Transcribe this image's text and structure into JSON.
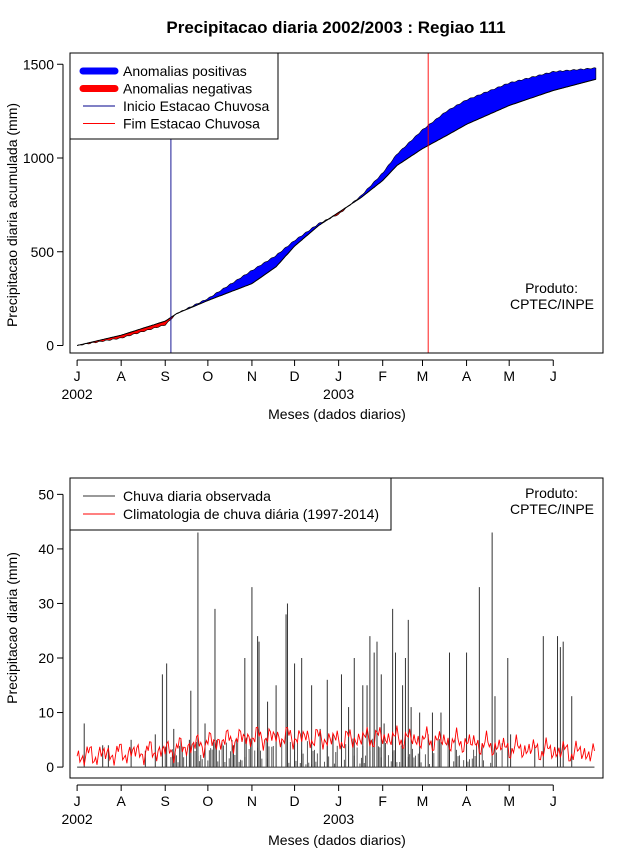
{
  "title": "Precipitacao diaria 2002/2003 : Regiao 111",
  "product_line1": "Produto:",
  "product_line2": "CPTEC/INPE",
  "colors": {
    "positive": "#0000ff",
    "negative": "#ff0000",
    "start_line": "#00008b",
    "end_line": "#ff0000",
    "observed": "#333333",
    "climatology": "#ff0000"
  },
  "chart_data": [
    {
      "type": "area",
      "id": "accumulated",
      "title": "Precipitacao diaria 2002/2003 : Regiao 111",
      "xlabel": "Meses (dados diarios)",
      "ylabel": "Precipitacao diaria acumulada (mm)",
      "x_unit": "days since 2002-07-01",
      "xlim": [
        -5,
        370
      ],
      "ylim": [
        -40,
        1560
      ],
      "yticks": [
        0,
        500,
        1000,
        1500
      ],
      "month_ticks": [
        {
          "day": 0,
          "label": "J"
        },
        {
          "day": 31,
          "label": "A"
        },
        {
          "day": 62,
          "label": "S"
        },
        {
          "day": 92,
          "label": "O"
        },
        {
          "day": 123,
          "label": "N"
        },
        {
          "day": 153,
          "label": "D"
        },
        {
          "day": 184,
          "label": "J"
        },
        {
          "day": 215,
          "label": "F"
        },
        {
          "day": 243,
          "label": "M"
        },
        {
          "day": 274,
          "label": "A"
        },
        {
          "day": 304,
          "label": "M"
        },
        {
          "day": 335,
          "label": "J"
        }
      ],
      "year_labels": [
        {
          "day": 0,
          "label": "2002"
        },
        {
          "day": 184,
          "label": "2003"
        }
      ],
      "observed_cumulative": {
        "days": [
          0,
          31,
          62,
          70,
          92,
          123,
          140,
          153,
          170,
          184,
          200,
          215,
          225,
          243,
          260,
          274,
          304,
          335,
          365
        ],
        "values": [
          0,
          40,
          110,
          170,
          250,
          400,
          480,
          560,
          650,
          700,
          800,
          920,
          1020,
          1150,
          1250,
          1310,
          1400,
          1460,
          1480
        ]
      },
      "climatology_cumulative": {
        "days": [
          0,
          31,
          62,
          70,
          92,
          123,
          140,
          153,
          170,
          184,
          200,
          215,
          225,
          243,
          260,
          274,
          304,
          335,
          365
        ],
        "values": [
          0,
          55,
          130,
          170,
          240,
          330,
          420,
          530,
          640,
          710,
          790,
          880,
          960,
          1050,
          1120,
          1180,
          1280,
          1360,
          1420
        ]
      },
      "start_wet_season_day": 66,
      "end_wet_season_day": 247,
      "legend": [
        {
          "label": "Anomalias positivas",
          "style": "thick",
          "color": "#0000ff"
        },
        {
          "label": "Anomalias negativas",
          "style": "thick",
          "color": "#ff0000"
        },
        {
          "label": "Inicio Estacao Chuvosa",
          "style": "thin",
          "color": "#00008b"
        },
        {
          "label": "Fim Estacao Chuvosa",
          "style": "thin",
          "color": "#ff0000"
        }
      ]
    },
    {
      "type": "bar",
      "id": "daily",
      "xlabel": "Meses (dados diarios)",
      "ylabel": "Precipitacao diaria (mm)",
      "xlim": [
        -5,
        370
      ],
      "ylim": [
        -2,
        53
      ],
      "yticks": [
        0,
        10,
        20,
        30,
        40,
        50
      ],
      "daily_peaks": [
        {
          "day": 5,
          "value": 8
        },
        {
          "day": 18,
          "value": 4
        },
        {
          "day": 22,
          "value": 4
        },
        {
          "day": 38,
          "value": 5
        },
        {
          "day": 48,
          "value": 3
        },
        {
          "day": 55,
          "value": 6
        },
        {
          "day": 60,
          "value": 17
        },
        {
          "day": 63,
          "value": 19
        },
        {
          "day": 68,
          "value": 7
        },
        {
          "day": 79,
          "value": 5
        },
        {
          "day": 80,
          "value": 14
        },
        {
          "day": 85,
          "value": 43
        },
        {
          "day": 90,
          "value": 8
        },
        {
          "day": 97,
          "value": 29
        },
        {
          "day": 110,
          "value": 4
        },
        {
          "day": 118,
          "value": 20
        },
        {
          "day": 123,
          "value": 33
        },
        {
          "day": 127,
          "value": 24
        },
        {
          "day": 128,
          "value": 23
        },
        {
          "day": 134,
          "value": 12
        },
        {
          "day": 140,
          "value": 15
        },
        {
          "day": 147,
          "value": 28
        },
        {
          "day": 148,
          "value": 30
        },
        {
          "day": 153,
          "value": 19
        },
        {
          "day": 158,
          "value": 20
        },
        {
          "day": 165,
          "value": 15
        },
        {
          "day": 171,
          "value": 7
        },
        {
          "day": 176,
          "value": 16
        },
        {
          "day": 180,
          "value": 6
        },
        {
          "day": 186,
          "value": 17
        },
        {
          "day": 191,
          "value": 11
        },
        {
          "day": 195,
          "value": 20
        },
        {
          "day": 201,
          "value": 15
        },
        {
          "day": 204,
          "value": 15
        },
        {
          "day": 206,
          "value": 24
        },
        {
          "day": 209,
          "value": 21
        },
        {
          "day": 211,
          "value": 23
        },
        {
          "day": 214,
          "value": 17
        },
        {
          "day": 216,
          "value": 8
        },
        {
          "day": 222,
          "value": 29
        },
        {
          "day": 224,
          "value": 21
        },
        {
          "day": 229,
          "value": 15
        },
        {
          "day": 231,
          "value": 20
        },
        {
          "day": 233,
          "value": 27
        },
        {
          "day": 235,
          "value": 11
        },
        {
          "day": 241,
          "value": 10
        },
        {
          "day": 247,
          "value": 6
        },
        {
          "day": 250,
          "value": 10
        },
        {
          "day": 256,
          "value": 10
        },
        {
          "day": 262,
          "value": 21
        },
        {
          "day": 274,
          "value": 21
        },
        {
          "day": 283,
          "value": 33
        },
        {
          "day": 292,
          "value": 43
        },
        {
          "day": 294,
          "value": 13
        },
        {
          "day": 303,
          "value": 20
        },
        {
          "day": 305,
          "value": 6
        },
        {
          "day": 322,
          "value": 4
        },
        {
          "day": 328,
          "value": 24
        },
        {
          "day": 338,
          "value": 24
        },
        {
          "day": 340,
          "value": 22
        },
        {
          "day": 342,
          "value": 23
        },
        {
          "day": 348,
          "value": 13
        }
      ],
      "climatology_monthly_mean": [
        {
          "day": 0,
          "value": 2.0
        },
        {
          "day": 31,
          "value": 2.5
        },
        {
          "day": 62,
          "value": 3.0
        },
        {
          "day": 92,
          "value": 4.5
        },
        {
          "day": 123,
          "value": 5.5
        },
        {
          "day": 153,
          "value": 5.5
        },
        {
          "day": 184,
          "value": 5.0
        },
        {
          "day": 215,
          "value": 5.5
        },
        {
          "day": 243,
          "value": 5.0
        },
        {
          "day": 274,
          "value": 4.5
        },
        {
          "day": 304,
          "value": 3.5
        },
        {
          "day": 335,
          "value": 3.0
        },
        {
          "day": 365,
          "value": 2.5
        }
      ],
      "legend": [
        {
          "label": "Chuva diaria observada",
          "color": "#333333"
        },
        {
          "label": "Climatologia de chuva diária (1997-2014)",
          "color": "#ff0000"
        }
      ]
    }
  ]
}
